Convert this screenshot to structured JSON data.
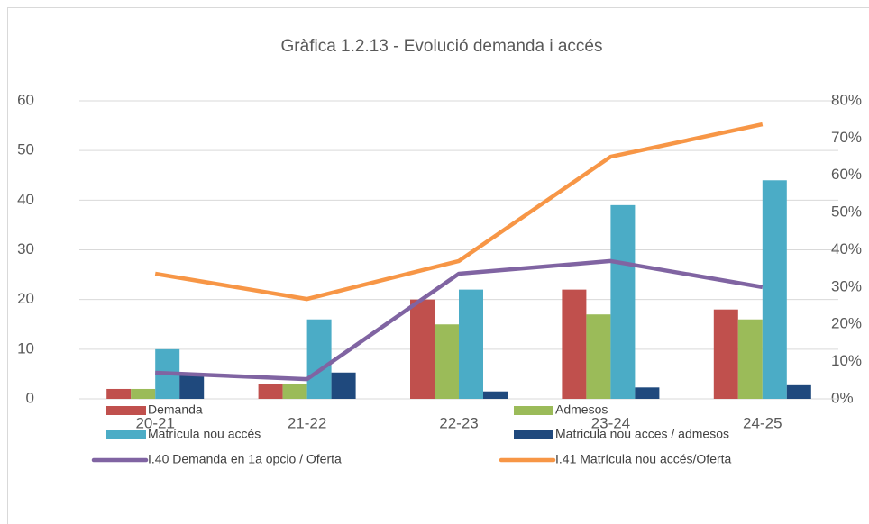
{
  "chart_data": {
    "type": "bar",
    "title": "Gràfica 1.2.13 - Evolució demanda i accés",
    "categories": [
      "20-21",
      "21-22",
      "22-23",
      "23-24",
      "24-25"
    ],
    "series": [
      {
        "name": "Demanda",
        "color": "#c0504d",
        "values": [
          2,
          3,
          20,
          22,
          18
        ]
      },
      {
        "name": "Admesos",
        "color": "#9bbb59",
        "values": [
          2,
          3,
          15,
          17,
          16
        ]
      },
      {
        "name": "Matrícula nou accés",
        "color": "#4bacc6",
        "values": [
          10,
          16,
          22,
          39,
          44
        ]
      },
      {
        "name": "Matricula nou acces / admesos",
        "color": "#1f497d",
        "values": [
          5,
          5.3,
          1.5,
          2.3,
          2.75
        ]
      },
      {
        "name": "I.40 Demanda en 1a opcio / Oferta",
        "color": "#8064a2",
        "type": "line",
        "axis": "y2",
        "values": [
          7,
          5.3,
          33.6,
          37,
          30
        ]
      },
      {
        "name": "I.41 Matrícula nou accés/Oferta",
        "color": "#f79646",
        "type": "line",
        "axis": "y2",
        "values": [
          33.6,
          26.8,
          37,
          65,
          73.7
        ]
      }
    ],
    "ylim": [
      0,
      60
    ],
    "yticks": [
      0,
      10,
      20,
      30,
      40,
      50,
      60
    ],
    "y2lim": [
      0,
      80
    ],
    "y2ticks": [
      {
        "value": 0,
        "label": "0%"
      },
      {
        "value": 10,
        "label": "10%"
      },
      {
        "value": 20,
        "label": "20%"
      },
      {
        "value": 30,
        "label": "30%"
      },
      {
        "value": 40,
        "label": "40%"
      },
      {
        "value": 50,
        "label": "50%"
      },
      {
        "value": 60,
        "label": "60%"
      },
      {
        "value": 70,
        "label": "70%"
      },
      {
        "value": 80,
        "label": "80%"
      }
    ]
  }
}
